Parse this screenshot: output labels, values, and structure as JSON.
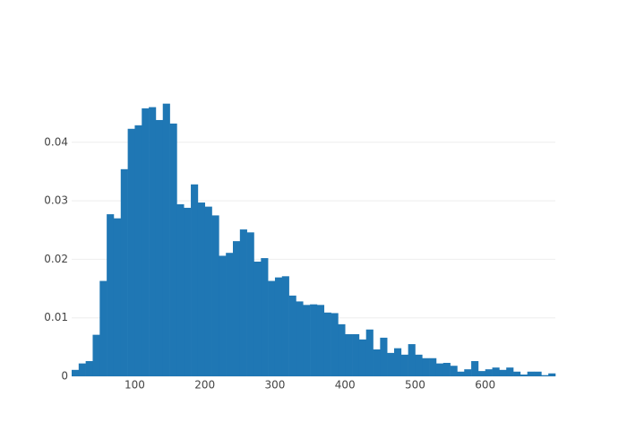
{
  "chart_data": {
    "type": "histogram",
    "color": "#1f77b4",
    "grid": true,
    "bins": [
      10,
      20,
      30,
      40,
      50,
      60,
      70,
      80,
      90,
      100,
      110,
      120,
      130,
      140,
      150,
      160,
      170,
      180,
      190,
      200,
      210,
      220,
      230,
      240,
      250,
      260,
      270,
      280,
      290,
      300,
      310,
      320,
      330,
      340,
      350,
      360,
      370,
      380,
      390,
      400,
      410,
      420,
      430,
      440,
      450,
      460,
      470,
      480,
      490,
      500,
      510,
      520,
      530,
      540,
      550,
      560,
      570,
      580,
      590,
      600,
      610,
      620,
      630,
      640,
      650,
      660,
      670,
      680,
      690,
      700
    ],
    "values": [
      0.0011,
      0.0022,
      0.0026,
      0.0071,
      0.0163,
      0.0277,
      0.027,
      0.0354,
      0.0423,
      0.0429,
      0.0458,
      0.046,
      0.0438,
      0.0466,
      0.0432,
      0.0294,
      0.0288,
      0.0328,
      0.0297,
      0.029,
      0.0275,
      0.0206,
      0.0211,
      0.0231,
      0.0251,
      0.0246,
      0.0196,
      0.0202,
      0.0163,
      0.0169,
      0.0171,
      0.0138,
      0.0128,
      0.0122,
      0.0123,
      0.0122,
      0.0109,
      0.0108,
      0.0089,
      0.0072,
      0.0072,
      0.0063,
      0.008,
      0.0046,
      0.0066,
      0.004,
      0.0048,
      0.0037,
      0.0055,
      0.0037,
      0.0031,
      0.0031,
      0.0022,
      0.0023,
      0.0018,
      0.0008,
      0.0012,
      0.0026,
      0.0009,
      0.0012,
      0.0015,
      0.0011,
      0.0015,
      0.0008,
      0.0003,
      0.0008,
      0.0008,
      0.0002,
      0.0005
    ],
    "xlim": [
      10,
      700
    ],
    "xticks": [
      100,
      200,
      300,
      400,
      500,
      600
    ],
    "ylim": [
      0,
      0.049
    ],
    "yticks": [
      0,
      0.01,
      0.02,
      0.03,
      0.04
    ]
  }
}
